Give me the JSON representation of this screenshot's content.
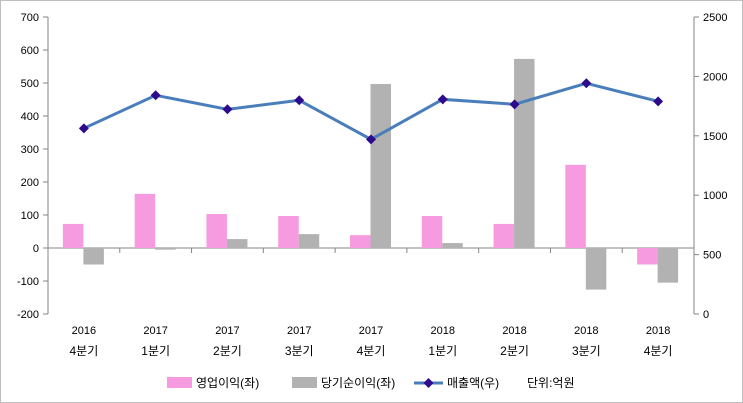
{
  "chart_data": {
    "type": "bar+line",
    "categories": [
      [
        "2016",
        "4분기"
      ],
      [
        "2017",
        "1분기"
      ],
      [
        "2017",
        "2분기"
      ],
      [
        "2017",
        "3분기"
      ],
      [
        "2017",
        "4분기"
      ],
      [
        "2018",
        "1분기"
      ],
      [
        "2018",
        "2분기"
      ],
      [
        "2018",
        "3분기"
      ],
      [
        "2018",
        "4분기"
      ]
    ],
    "series": [
      {
        "name": "영업이익(좌)",
        "type": "bar",
        "axis": "left",
        "color": "#f79be0",
        "values": [
          73,
          164,
          103,
          97,
          39,
          97,
          73,
          252,
          -50
        ]
      },
      {
        "name": "당기순이익(좌)",
        "type": "bar",
        "axis": "left",
        "color": "#b2b2b2",
        "values": [
          -50,
          -5,
          27,
          42,
          497,
          15,
          573,
          -126,
          -105
        ]
      },
      {
        "name": "매출액(우)",
        "type": "line",
        "axis": "right",
        "color": "#4a7ebb",
        "marker_color": "#2e0a8c",
        "values": [
          1563,
          1841,
          1723,
          1799,
          1470,
          1807,
          1765,
          1942,
          1790
        ]
      }
    ],
    "unit_note": "단위:억원",
    "y_left": {
      "min": -200,
      "max": 700,
      "step": 100,
      "ticks": [
        "-200",
        "-100",
        "0",
        "100",
        "200",
        "300",
        "400",
        "500",
        "600",
        "700"
      ]
    },
    "y_right": {
      "min": 0,
      "max": 2500,
      "step": 500,
      "ticks": [
        "0",
        "500",
        "1000",
        "1500",
        "2000",
        "2500"
      ]
    },
    "grid": false,
    "legend_position": "bottom"
  }
}
